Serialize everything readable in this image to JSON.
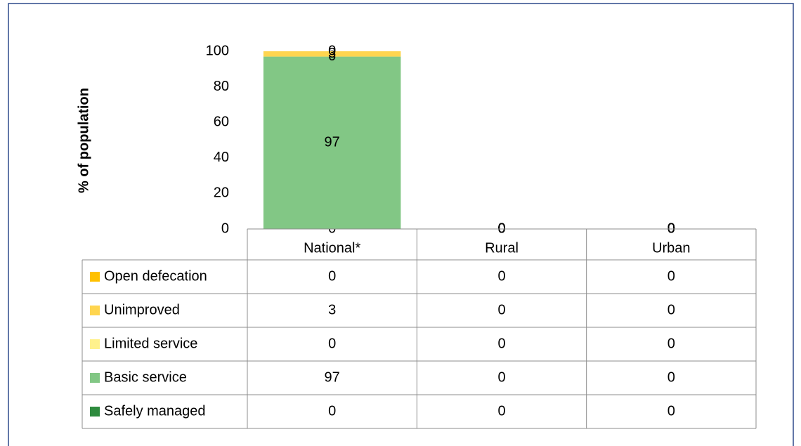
{
  "chart_data": {
    "type": "stacked_bar",
    "y_label": "% of population",
    "categories": [
      "National*",
      "Rural",
      "Urban"
    ],
    "series": [
      {
        "name": "Safely managed",
        "color": "#2e8b3e",
        "values": [
          0,
          0,
          0
        ]
      },
      {
        "name": "Basic service",
        "color": "#82c785",
        "values": [
          97,
          0,
          0
        ]
      },
      {
        "name": "Limited service",
        "color": "#fff18c",
        "values": [
          0,
          0,
          0
        ]
      },
      {
        "name": "Unimproved",
        "color": "#ffd54f",
        "values": [
          3,
          0,
          0
        ]
      },
      {
        "name": "Open defecation",
        "color": "#ffc000",
        "values": [
          0,
          0,
          0
        ]
      }
    ],
    "ylim": [
      0,
      100
    ],
    "yticks": [
      0,
      20,
      40,
      60,
      80,
      100
    ],
    "grid": false,
    "data_table": true
  }
}
